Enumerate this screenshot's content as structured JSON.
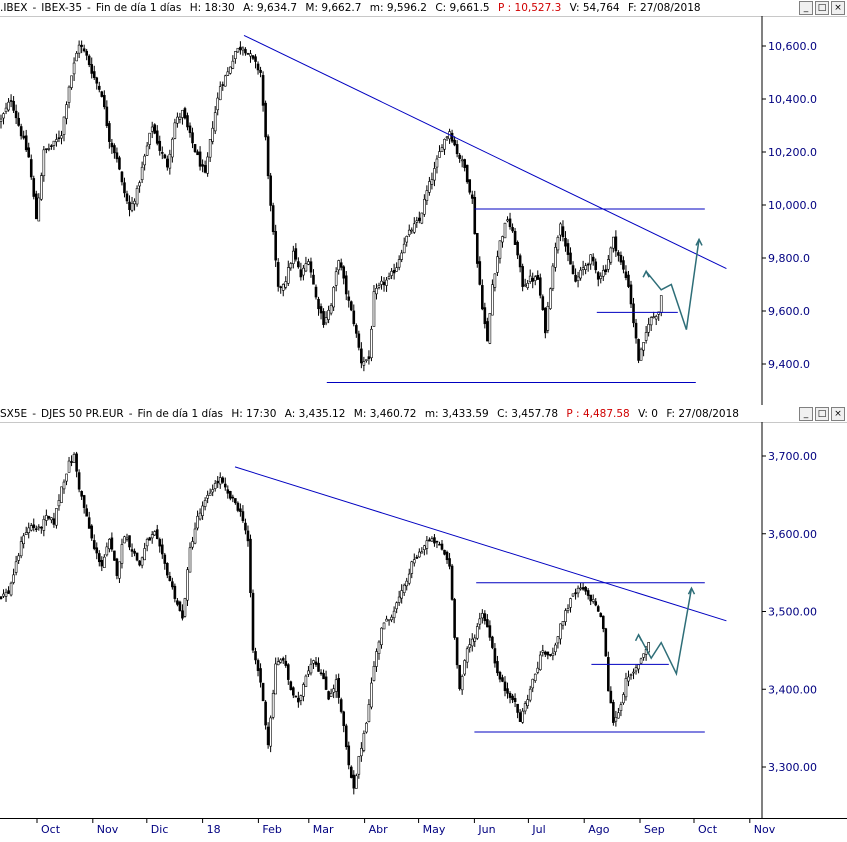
{
  "panels": [
    {
      "header": {
        "symbol": ".IBEX",
        "name": "IBEX-35",
        "period": "Fin de día 1 días",
        "h_label": "H:",
        "h_value": "18:30",
        "a_label": "A:",
        "a_value": "9,634.7",
        "m_label": "M:",
        "m_value": "9,662.7",
        "min_label": "m:",
        "min_value": "9,596.2",
        "c_label": "C:",
        "c_value": "9,661.5",
        "p_label": "P :",
        "p_value": "10,527.3",
        "v_label": "V:",
        "v_value": "54,764",
        "f_label": "F:",
        "f_value": "27/08/2018"
      }
    },
    {
      "header": {
        "symbol": "SX5E",
        "name": "DJES 50 PR.EUR",
        "period": "Fin de día 1 días",
        "h_label": "H:",
        "h_value": "17:30",
        "a_label": "A:",
        "a_value": "3,435.12",
        "m_label": "M:",
        "m_value": "3,460.72",
        "min_label": "m:",
        "min_value": "3,433.59",
        "c_label": "C:",
        "c_value": "3,457.78",
        "p_label": "P :",
        "p_value": "4,487.58",
        "v_label": "V:",
        "v_value": "0",
        "f_label": "F:",
        "f_value": "27/08/2018"
      }
    }
  ],
  "window_buttons": {
    "minimize": "_",
    "maximize": "□",
    "close": "×"
  },
  "x_axis_labels": [
    "Oct",
    "Nov",
    "Dic",
    "18",
    "Feb",
    "Mar",
    "Abr",
    "May",
    "Jun",
    "Jul",
    "Ago",
    "Sep",
    "Oct",
    "Nov"
  ],
  "colors": {
    "candles": "#000000",
    "trendlines": "#0000c0",
    "forecast": "#2e6e78",
    "axis_text": "#000080"
  },
  "chart_data": [
    {
      "type": "candlestick",
      "name": "IBEX-35",
      "y_tick_labels": [
        "10,600.0",
        "10,400.0",
        "10,200.0",
        "10,000.0",
        "9,800.0",
        "9,600.0",
        "9,400.0"
      ],
      "y_ticks": [
        10600,
        10400,
        10200,
        10000,
        9800,
        9600,
        9400
      ],
      "ylim": [
        9330,
        10680
      ],
      "anchors": [
        [
          0,
          10320
        ],
        [
          4,
          10400
        ],
        [
          8,
          10270
        ],
        [
          11,
          10180
        ],
        [
          14,
          9950
        ],
        [
          17,
          10200
        ],
        [
          21,
          10230
        ],
        [
          24,
          10270
        ],
        [
          27,
          10450
        ],
        [
          31,
          10610
        ],
        [
          34,
          10560
        ],
        [
          37,
          10480
        ],
        [
          40,
          10420
        ],
        [
          43,
          10250
        ],
        [
          46,
          10180
        ],
        [
          48,
          10080
        ],
        [
          51,
          9980
        ],
        [
          54,
          10050
        ],
        [
          57,
          10180
        ],
        [
          60,
          10300
        ],
        [
          63,
          10210
        ],
        [
          66,
          10150
        ],
        [
          69,
          10310
        ],
        [
          72,
          10350
        ],
        [
          75,
          10260
        ],
        [
          78,
          10180
        ],
        [
          81,
          10110
        ],
        [
          84,
          10300
        ],
        [
          87,
          10450
        ],
        [
          90,
          10500
        ],
        [
          93,
          10580
        ],
        [
          96,
          10600
        ],
        [
          99,
          10560
        ],
        [
          103,
          10500
        ],
        [
          105,
          10250
        ],
        [
          107,
          9990
        ],
        [
          110,
          9680
        ],
        [
          113,
          9720
        ],
        [
          116,
          9820
        ],
        [
          119,
          9730
        ],
        [
          122,
          9800
        ],
        [
          125,
          9650
        ],
        [
          128,
          9560
        ],
        [
          131,
          9620
        ],
        [
          134,
          9800
        ],
        [
          137,
          9670
        ],
        [
          140,
          9560
        ],
        [
          143,
          9410
        ],
        [
          146,
          9420
        ],
        [
          148,
          9660
        ],
        [
          151,
          9700
        ],
        [
          154,
          9720
        ],
        [
          157,
          9770
        ],
        [
          160,
          9860
        ],
        [
          163,
          9910
        ],
        [
          166,
          9940
        ],
        [
          169,
          10050
        ],
        [
          172,
          10130
        ],
        [
          175,
          10230
        ],
        [
          178,
          10280
        ],
        [
          181,
          10200
        ],
        [
          184,
          10140
        ],
        [
          187,
          10020
        ],
        [
          189,
          9780
        ],
        [
          191,
          9620
        ],
        [
          193,
          9480
        ],
        [
          195,
          9700
        ],
        [
          198,
          9860
        ],
        [
          201,
          9950
        ],
        [
          204,
          9860
        ],
        [
          207,
          9700
        ],
        [
          210,
          9720
        ],
        [
          213,
          9720
        ],
        [
          216,
          9530
        ],
        [
          219,
          9780
        ],
        [
          222,
          9940
        ],
        [
          225,
          9800
        ],
        [
          228,
          9710
        ],
        [
          231,
          9760
        ],
        [
          234,
          9800
        ],
        [
          237,
          9730
        ],
        [
          240,
          9760
        ],
        [
          243,
          9870
        ],
        [
          246,
          9780
        ],
        [
          249,
          9700
        ],
        [
          251,
          9560
        ],
        [
          253,
          9420
        ],
        [
          255,
          9470
        ],
        [
          257,
          9560
        ],
        [
          259,
          9580
        ],
        [
          261,
          9600
        ],
        [
          262,
          9660
        ]
      ],
      "forecast_path": [
        [
          9640,
          9750
        ],
        [
          9655,
          9680
        ],
        [
          9664,
          9700
        ],
        [
          9684,
          9530
        ],
        [
          9696,
          9870
        ]
      ],
      "trendlines": [
        {
          "from": [
            "2018-01-24",
            10640
          ],
          "to": [
            "2018-10-19",
            9760
          ]
        },
        {
          "from": [
            "2018-06-01",
            9985
          ],
          "to": [
            "2018-10-07",
            9985
          ]
        },
        {
          "from": [
            "2018-08-08",
            9595
          ],
          "to": [
            "2018-09-22",
            9595
          ]
        },
        {
          "from": [
            "2018-03-11",
            9330
          ],
          "to": [
            "2018-10-02",
            9330
          ]
        }
      ]
    },
    {
      "type": "candlestick",
      "name": "DJES 50 PR.EUR",
      "y_tick_labels": [
        "3,700.00",
        "3,600.00",
        "3,500.00",
        "3,400.00",
        "3,300.00"
      ],
      "y_ticks": [
        3700,
        3600,
        3500,
        3400,
        3300
      ],
      "ylim": [
        3255,
        3720
      ],
      "anchors": [
        [
          0,
          3520
        ],
        [
          3,
          3525
        ],
        [
          6,
          3560
        ],
        [
          9,
          3600
        ],
        [
          12,
          3610
        ],
        [
          15,
          3605
        ],
        [
          18,
          3620
        ],
        [
          21,
          3615
        ],
        [
          24,
          3660
        ],
        [
          27,
          3690
        ],
        [
          29,
          3700
        ],
        [
          31,
          3660
        ],
        [
          34,
          3620
        ],
        [
          37,
          3580
        ],
        [
          40,
          3560
        ],
        [
          43,
          3590
        ],
        [
          46,
          3550
        ],
        [
          49,
          3600
        ],
        [
          52,
          3580
        ],
        [
          55,
          3560
        ],
        [
          58,
          3590
        ],
        [
          61,
          3600
        ],
        [
          64,
          3570
        ],
        [
          67,
          3540
        ],
        [
          70,
          3510
        ],
        [
          72,
          3490
        ],
        [
          75,
          3580
        ],
        [
          78,
          3620
        ],
        [
          81,
          3640
        ],
        [
          84,
          3660
        ],
        [
          87,
          3670
        ],
        [
          90,
          3650
        ],
        [
          93,
          3640
        ],
        [
          96,
          3620
        ],
        [
          98,
          3590
        ],
        [
          100,
          3450
        ],
        [
          103,
          3410
        ],
        [
          106,
          3330
        ],
        [
          109,
          3430
        ],
        [
          112,
          3440
        ],
        [
          115,
          3400
        ],
        [
          118,
          3380
        ],
        [
          121,
          3420
        ],
        [
          124,
          3440
        ],
        [
          127,
          3420
        ],
        [
          130,
          3390
        ],
        [
          133,
          3410
        ],
        [
          136,
          3350
        ],
        [
          138,
          3300
        ],
        [
          140,
          3270
        ],
        [
          142,
          3310
        ],
        [
          145,
          3360
        ],
        [
          148,
          3430
        ],
        [
          151,
          3480
        ],
        [
          154,
          3490
        ],
        [
          157,
          3510
        ],
        [
          160,
          3530
        ],
        [
          163,
          3560
        ],
        [
          166,
          3575
        ],
        [
          169,
          3590
        ],
        [
          172,
          3590
        ],
        [
          175,
          3580
        ],
        [
          178,
          3560
        ],
        [
          180,
          3470
        ],
        [
          182,
          3400
        ],
        [
          185,
          3450
        ],
        [
          188,
          3470
        ],
        [
          191,
          3500
        ],
        [
          194,
          3470
        ],
        [
          197,
          3420
        ],
        [
          200,
          3400
        ],
        [
          203,
          3390
        ],
        [
          206,
          3360
        ],
        [
          209,
          3390
        ],
        [
          212,
          3420
        ],
        [
          215,
          3450
        ],
        [
          218,
          3440
        ],
        [
          221,
          3470
        ],
        [
          224,
          3500
        ],
        [
          227,
          3520
        ],
        [
          230,
          3530
        ],
        [
          233,
          3520
        ],
        [
          236,
          3510
        ],
        [
          239,
          3480
        ],
        [
          241,
          3400
        ],
        [
          243,
          3360
        ],
        [
          245,
          3370
        ],
        [
          248,
          3410
        ],
        [
          251,
          3420
        ],
        [
          254,
          3440
        ],
        [
          257,
          3460
        ]
      ],
      "forecast_path": [
        [
          3454,
          3470
        ],
        [
          3450,
          3440
        ],
        [
          3460,
          3460
        ],
        [
          3418,
          3420
        ],
        [
          3520,
          3530
        ]
      ],
      "trendlines": [
        {
          "from": [
            "2018-01-19",
            3686
          ],
          "to": [
            "2018-10-19",
            3488
          ]
        },
        {
          "from": [
            "2018-06-02",
            3537
          ],
          "to": [
            "2018-10-07",
            3537
          ]
        },
        {
          "from": [
            "2018-08-05",
            3432
          ],
          "to": [
            "2018-09-17",
            3432
          ]
        },
        {
          "from": [
            "2018-06-01",
            3345
          ],
          "to": [
            "2018-10-07",
            3345
          ]
        }
      ]
    }
  ]
}
